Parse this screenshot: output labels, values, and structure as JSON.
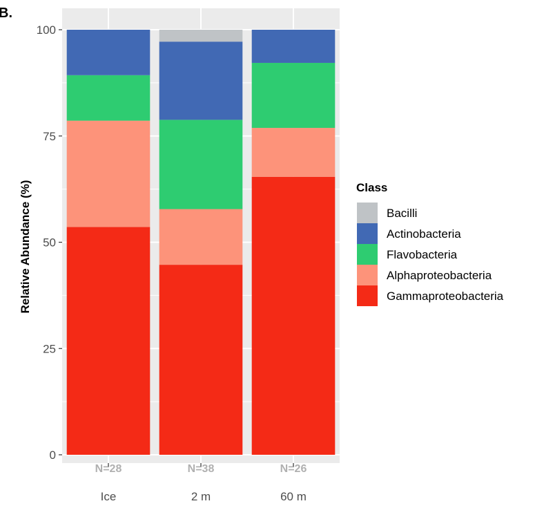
{
  "panel_label": "B.",
  "chart_data": {
    "type": "bar",
    "stacked": true,
    "categories": [
      "Ice",
      "2 m",
      "60 m"
    ],
    "sample_labels": [
      "N=28",
      "N=38",
      "N=26"
    ],
    "ylabel": "Relative Abundance (%)",
    "xlabel": "",
    "ylim": [
      0,
      100
    ],
    "yticks": [
      "0",
      "25",
      "50",
      "75",
      "100"
    ],
    "grid": true,
    "legend": {
      "title": "Class",
      "placement": "right",
      "entries": [
        "Bacilli",
        "Actinobacteria",
        "Flavobacteria",
        "Alphaproteobacteria",
        "Gammaproteobacteria"
      ]
    },
    "series": [
      {
        "name": "Gammaproteobacteria",
        "color": "#f42a16",
        "values": [
          53.6,
          44.7,
          65.4
        ]
      },
      {
        "name": "Alphaproteobacteria",
        "color": "#fd937a",
        "values": [
          25.0,
          13.1,
          11.5
        ]
      },
      {
        "name": "Flavobacteria",
        "color": "#2ecc71",
        "values": [
          10.7,
          21.0,
          15.3
        ]
      },
      {
        "name": "Actinobacteria",
        "color": "#4169b4",
        "values": [
          10.7,
          18.4,
          7.8
        ]
      },
      {
        "name": "Bacilli",
        "color": "#bfc3c6",
        "values": [
          0,
          2.8,
          0
        ]
      }
    ]
  }
}
